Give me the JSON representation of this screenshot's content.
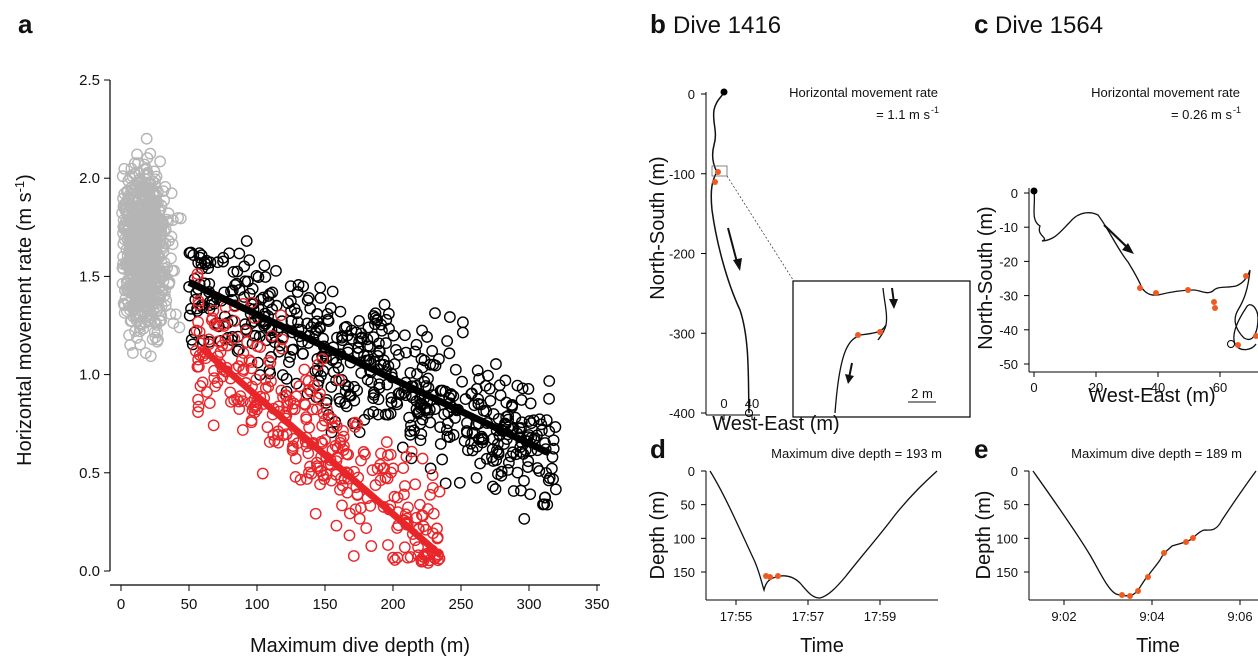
{
  "panels": {
    "a": {
      "letter": "a"
    },
    "b": {
      "letter": "b",
      "title": "Dive 1416"
    },
    "c": {
      "letter": "c",
      "title": "Dive 1564"
    },
    "d": {
      "letter": "d"
    },
    "e": {
      "letter": "e"
    }
  },
  "colors": {
    "gray": "#b5b5b5",
    "black": "#000000",
    "red": "#e8262a",
    "orange": "#f05a22"
  },
  "chart_data": [
    {
      "id": "a",
      "type": "scatter",
      "xlabel": "Maximum dive depth (m)",
      "ylabel": "Horizontal movement rate (m s",
      "ylabel_sup": "-1",
      "ylabel_end": ")",
      "xlim": [
        0,
        350
      ],
      "ylim": [
        0,
        2.5
      ],
      "xticks": [
        "0",
        "50",
        "100",
        "150",
        "200",
        "250",
        "300",
        "350"
      ],
      "yticks": [
        "0.0",
        "0.5",
        "1.0",
        "1.5",
        "2.0",
        "2.5"
      ],
      "series": [
        {
          "color": "gray",
          "points_desc": "dense cloud at depth 0-50 m, rate 1.0-2.25"
        },
        {
          "color": "black",
          "fit": [
            [
              50,
              1.47
            ],
            [
              315,
              0.6
            ]
          ]
        },
        {
          "color": "red",
          "fit": [
            [
              60,
              1.13
            ],
            [
              235,
              0.08
            ]
          ]
        }
      ]
    },
    {
      "id": "b",
      "type": "line",
      "xlabel": "West-East (m)",
      "ylabel": "North-South (m)",
      "xticks": [
        "0",
        "40"
      ],
      "yticks": [
        "0",
        "-100",
        "-200",
        "-300",
        "-400"
      ],
      "annotation_line1": "Horizontal movement rate",
      "annotation_line2": "= 1.1 m s",
      "annotation_sup": "-1",
      "scale_label": "2 m"
    },
    {
      "id": "c",
      "type": "line",
      "xlabel": "West-East (m)",
      "ylabel": "North-South (m)",
      "xticks": [
        "0",
        "20",
        "40",
        "60"
      ],
      "yticks": [
        "0",
        "-10",
        "-20",
        "-30",
        "-40",
        "-50"
      ],
      "annotation_line1": "Horizontal movement rate",
      "annotation_line2": "= 0.26 m s",
      "annotation_sup": "-1"
    },
    {
      "id": "d",
      "type": "line",
      "xlabel": "Time",
      "ylabel": "Depth (m)",
      "xticks": [
        "17:55",
        "17:57",
        "17:59"
      ],
      "yticks": [
        "0",
        "50",
        "100",
        "150"
      ],
      "annotation": "Maximum dive depth =  193 m",
      "max_depth": 193
    },
    {
      "id": "e",
      "type": "line",
      "xlabel": "Time",
      "ylabel": "Depth (m)",
      "xticks": [
        "9:02",
        "9:04",
        "9:06"
      ],
      "yticks": [
        "0",
        "50",
        "100",
        "150"
      ],
      "annotation": "Maximum dive depth =  189 m",
      "max_depth": 189
    }
  ]
}
